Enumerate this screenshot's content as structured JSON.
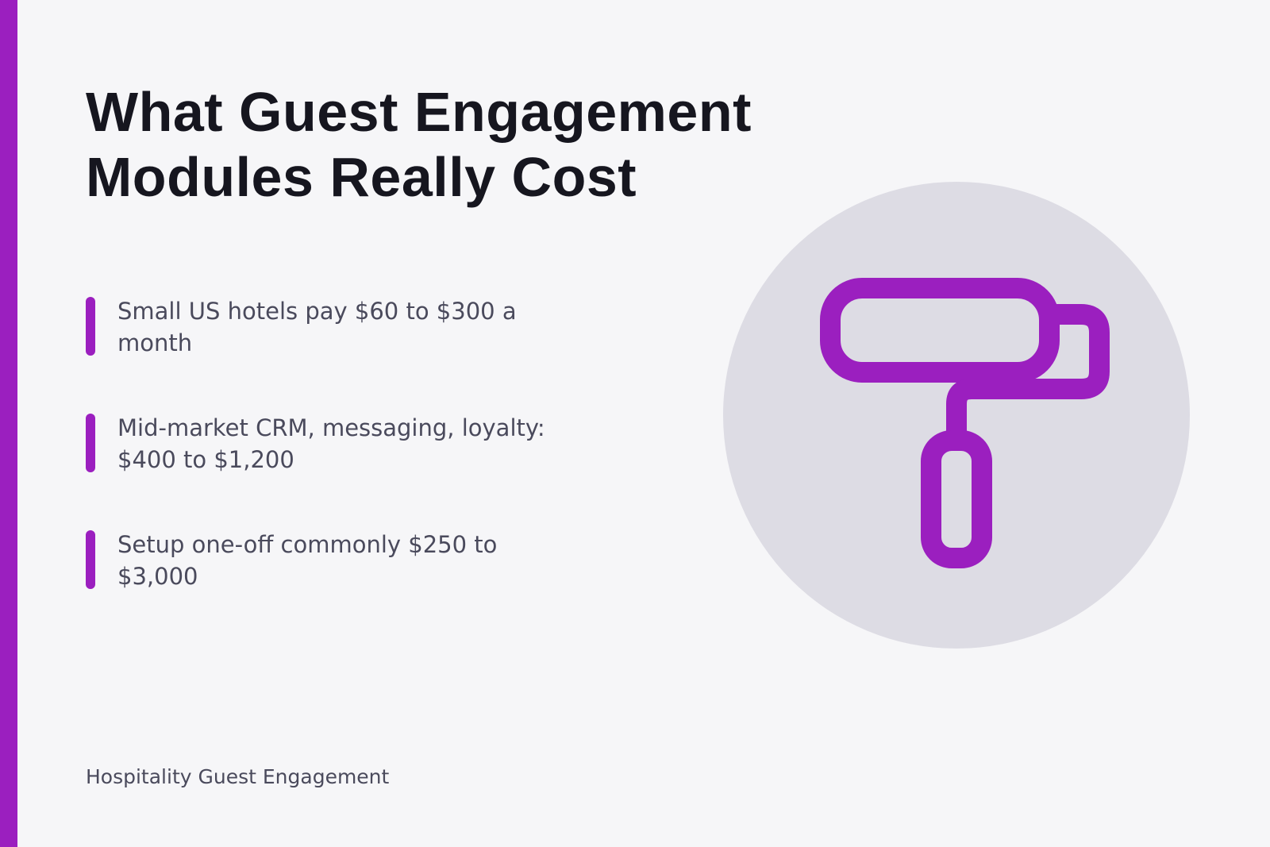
{
  "title": "What Guest Engagement Modules Really Cost",
  "bullets": [
    "Small US hotels pay $60 to $300 a month",
    "Mid-market CRM, messaging, loyalty: $400 to $1,200",
    "Setup one-off commonly $250 to $3,000"
  ],
  "footer": "Hospitality Guest Engagement"
}
